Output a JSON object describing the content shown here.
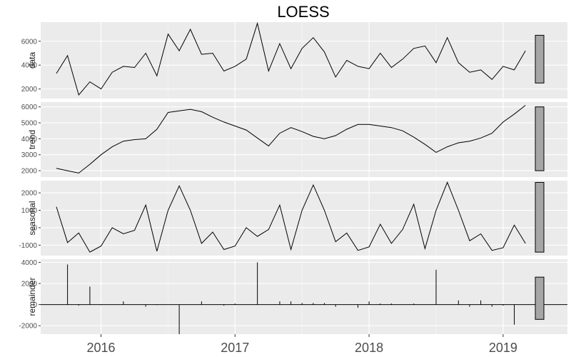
{
  "chart_data": {
    "type": "line",
    "title": "LOESS",
    "x_ticks": [
      "2016",
      "2017",
      "2018",
      "2019"
    ],
    "x_range": [
      2015.55,
      2019.48
    ],
    "t_start": 2015.667,
    "t_step": 0.08333,
    "panels": [
      {
        "name": "data",
        "ylim": [
          1200,
          7600
        ],
        "y_ticks": [
          2000,
          4000,
          6000
        ],
        "y_tick_labels": [
          "2000",
          "4000",
          "6000"
        ],
        "scale_bar": [
          2500,
          6500
        ],
        "style": "line",
        "values": [
          3300,
          4800,
          1500,
          2600,
          2000,
          3400,
          3900,
          3800,
          5000,
          3100,
          6600,
          5200,
          7000,
          4900,
          5000,
          3500,
          3900,
          4500,
          7500,
          3500,
          5800,
          3700,
          5400,
          6300,
          5100,
          3000,
          4400,
          3900,
          3700,
          5000,
          3800,
          4500,
          5400,
          5600,
          4200,
          6300,
          4200,
          3400,
          3600,
          2800,
          3900,
          3600,
          5200
        ]
      },
      {
        "name": "trend",
        "ylim": [
          1600,
          6300
        ],
        "y_ticks": [
          2000,
          3000,
          4000,
          5000,
          6000
        ],
        "y_tick_labels": [
          "2000",
          "3000",
          "4000",
          "5000",
          "6000"
        ],
        "scale_bar": [
          2000,
          6000
        ],
        "style": "line",
        "values": [
          2150,
          2000,
          1850,
          2400,
          3000,
          3500,
          3850,
          3950,
          4000,
          4600,
          5650,
          5750,
          5850,
          5700,
          5350,
          5050,
          4800,
          4550,
          4050,
          3550,
          4350,
          4700,
          4450,
          4150,
          4000,
          4200,
          4600,
          4900,
          4900,
          4800,
          4700,
          4500,
          4100,
          3650,
          3150,
          3500,
          3750,
          3850,
          4050,
          4350,
          5050,
          5550,
          6100
        ]
      },
      {
        "name": "seasonal",
        "ylim": [
          -1600,
          2700
        ],
        "y_ticks": [
          -1000,
          0,
          1000,
          2000
        ],
        "y_tick_labels": [
          "-1000",
          "0",
          "1000",
          "2000"
        ],
        "scale_bar": [
          -1400,
          2600
        ],
        "style": "line",
        "values": [
          1200,
          -850,
          -300,
          -1400,
          -1050,
          0,
          -350,
          -150,
          1300,
          -1350,
          1000,
          2400,
          1000,
          -900,
          -250,
          -1250,
          -1050,
          0,
          -500,
          -100,
          1300,
          -1250,
          1000,
          2450,
          1000,
          -800,
          -300,
          -1300,
          -1100,
          200,
          -900,
          -100,
          1350,
          -1200,
          1000,
          2600,
          1000,
          -750,
          -350,
          -1300,
          -1150,
          150,
          -900
        ]
      },
      {
        "name": "remainder",
        "ylim": [
          -2800,
          4300
        ],
        "y_ticks": [
          -2000,
          0,
          2000,
          4000
        ],
        "y_tick_labels": [
          "-2000",
          "0",
          "2000",
          "4000"
        ],
        "scale_bar": [
          -1400,
          2600
        ],
        "style": "spikes",
        "values": [
          0,
          3800,
          -100,
          1700,
          -50,
          0,
          300,
          0,
          -200,
          -50,
          0,
          -2800,
          0,
          300,
          0,
          -100,
          100,
          0,
          4000,
          0,
          300,
          300,
          150,
          150,
          150,
          -200,
          0,
          -300,
          300,
          100,
          100,
          0,
          100,
          0,
          3300,
          0,
          400,
          -200,
          400,
          -200,
          -100,
          -1900,
          0
        ]
      }
    ]
  }
}
